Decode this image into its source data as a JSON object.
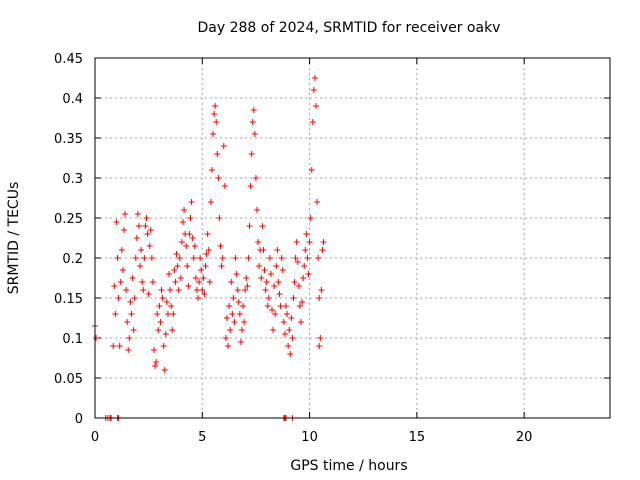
{
  "chart_data": {
    "type": "scatter",
    "title": "Day 288 of 2024, SRMTID for receiver oakv",
    "xlabel": "GPS time / hours",
    "ylabel": "SRMTID / TECUs",
    "xlim": [
      0,
      24
    ],
    "ylim": [
      0,
      0.45
    ],
    "xticks": [
      0,
      5,
      10,
      15,
      20
    ],
    "xtick_labels": [
      "0",
      "5",
      "10",
      "15",
      "20"
    ],
    "yticks": [
      0,
      0.05,
      0.1,
      0.15,
      0.2,
      0.25,
      0.3,
      0.35,
      0.4,
      0.45
    ],
    "ytick_labels": [
      "0",
      "0.05",
      "0.1",
      "0.15",
      "0.2",
      "0.25",
      "0.3",
      "0.35",
      "0.4",
      "0.45"
    ],
    "grid": true,
    "marker": "+",
    "color": "#ff0000",
    "series": [
      {
        "name": "SRMTID",
        "points": [
          [
            0.0,
            0.115
          ],
          [
            0.05,
            0.1
          ],
          [
            0.5,
            0.0
          ],
          [
            0.6,
            0.0
          ],
          [
            0.7,
            0.0
          ],
          [
            0.75,
            0.0
          ],
          [
            1.05,
            0.0
          ],
          [
            1.1,
            0.0
          ],
          [
            0.85,
            0.09
          ],
          [
            0.9,
            0.165
          ],
          [
            0.95,
            0.13
          ],
          [
            1.0,
            0.245
          ],
          [
            1.05,
            0.2
          ],
          [
            1.1,
            0.15
          ],
          [
            1.15,
            0.09
          ],
          [
            1.2,
            0.17
          ],
          [
            1.25,
            0.21
          ],
          [
            1.3,
            0.185
          ],
          [
            1.35,
            0.235
          ],
          [
            1.4,
            0.255
          ],
          [
            1.45,
            0.16
          ],
          [
            1.5,
            0.12
          ],
          [
            1.55,
            0.085
          ],
          [
            1.6,
            0.1
          ],
          [
            1.65,
            0.145
          ],
          [
            1.7,
            0.13
          ],
          [
            1.75,
            0.175
          ],
          [
            1.8,
            0.11
          ],
          [
            1.85,
            0.15
          ],
          [
            1.9,
            0.2
          ],
          [
            1.95,
            0.225
          ],
          [
            2.0,
            0.255
          ],
          [
            2.05,
            0.24
          ],
          [
            2.1,
            0.19
          ],
          [
            2.15,
            0.21
          ],
          [
            2.2,
            0.17
          ],
          [
            2.25,
            0.16
          ],
          [
            2.3,
            0.2
          ],
          [
            2.35,
            0.24
          ],
          [
            2.4,
            0.25
          ],
          [
            2.45,
            0.23
          ],
          [
            2.5,
            0.155
          ],
          [
            2.55,
            0.215
          ],
          [
            2.6,
            0.235
          ],
          [
            2.65,
            0.2
          ],
          [
            2.7,
            0.17
          ],
          [
            2.75,
            0.085
          ],
          [
            2.8,
            0.065
          ],
          [
            2.85,
            0.07
          ],
          [
            2.9,
            0.13
          ],
          [
            2.95,
            0.11
          ],
          [
            3.0,
            0.14
          ],
          [
            3.05,
            0.12
          ],
          [
            3.1,
            0.16
          ],
          [
            3.15,
            0.15
          ],
          [
            3.2,
            0.09
          ],
          [
            3.25,
            0.06
          ],
          [
            3.3,
            0.105
          ],
          [
            3.35,
            0.145
          ],
          [
            3.4,
            0.13
          ],
          [
            3.45,
            0.18
          ],
          [
            3.5,
            0.16
          ],
          [
            3.55,
            0.14
          ],
          [
            3.6,
            0.11
          ],
          [
            3.65,
            0.13
          ],
          [
            3.7,
            0.185
          ],
          [
            3.75,
            0.17
          ],
          [
            3.8,
            0.205
          ],
          [
            3.85,
            0.19
          ],
          [
            3.9,
            0.16
          ],
          [
            3.95,
            0.2
          ],
          [
            4.0,
            0.175
          ],
          [
            4.05,
            0.22
          ],
          [
            4.1,
            0.245
          ],
          [
            4.15,
            0.26
          ],
          [
            4.2,
            0.23
          ],
          [
            4.25,
            0.215
          ],
          [
            4.3,
            0.19
          ],
          [
            4.35,
            0.165
          ],
          [
            4.4,
            0.23
          ],
          [
            4.45,
            0.25
          ],
          [
            4.5,
            0.27
          ],
          [
            4.55,
            0.225
          ],
          [
            4.6,
            0.2
          ],
          [
            4.65,
            0.215
          ],
          [
            4.7,
            0.175
          ],
          [
            4.75,
            0.16
          ],
          [
            4.8,
            0.15
          ],
          [
            4.85,
            0.17
          ],
          [
            4.9,
            0.2
          ],
          [
            4.95,
            0.185
          ],
          [
            5.0,
            0.16
          ],
          [
            5.05,
            0.175
          ],
          [
            5.1,
            0.155
          ],
          [
            5.15,
            0.19
          ],
          [
            5.2,
            0.205
          ],
          [
            5.25,
            0.23
          ],
          [
            5.3,
            0.21
          ],
          [
            5.35,
            0.17
          ],
          [
            5.4,
            0.27
          ],
          [
            5.45,
            0.31
          ],
          [
            5.5,
            0.355
          ],
          [
            5.55,
            0.38
          ],
          [
            5.6,
            0.39
          ],
          [
            5.65,
            0.37
          ],
          [
            5.7,
            0.33
          ],
          [
            5.75,
            0.3
          ],
          [
            5.8,
            0.25
          ],
          [
            5.85,
            0.215
          ],
          [
            5.9,
            0.19
          ],
          [
            5.95,
            0.2
          ],
          [
            6.0,
            0.34
          ],
          [
            6.05,
            0.29
          ],
          [
            6.1,
            0.1
          ],
          [
            6.15,
            0.125
          ],
          [
            6.2,
            0.09
          ],
          [
            6.25,
            0.14
          ],
          [
            6.3,
            0.11
          ],
          [
            6.35,
            0.17
          ],
          [
            6.4,
            0.13
          ],
          [
            6.45,
            0.15
          ],
          [
            6.5,
            0.12
          ],
          [
            6.55,
            0.2
          ],
          [
            6.6,
            0.18
          ],
          [
            6.65,
            0.16
          ],
          [
            6.7,
            0.145
          ],
          [
            6.75,
            0.13
          ],
          [
            6.8,
            0.095
          ],
          [
            6.85,
            0.11
          ],
          [
            6.9,
            0.14
          ],
          [
            6.95,
            0.12
          ],
          [
            7.0,
            0.16
          ],
          [
            7.05,
            0.175
          ],
          [
            7.1,
            0.165
          ],
          [
            7.15,
            0.2
          ],
          [
            7.2,
            0.24
          ],
          [
            7.25,
            0.29
          ],
          [
            7.3,
            0.33
          ],
          [
            7.35,
            0.37
          ],
          [
            7.4,
            0.385
          ],
          [
            7.45,
            0.355
          ],
          [
            7.5,
            0.3
          ],
          [
            7.55,
            0.26
          ],
          [
            7.6,
            0.22
          ],
          [
            7.65,
            0.19
          ],
          [
            7.7,
            0.21
          ],
          [
            7.75,
            0.175
          ],
          [
            7.8,
            0.24
          ],
          [
            7.85,
            0.21
          ],
          [
            7.9,
            0.185
          ],
          [
            7.95,
            0.16
          ],
          [
            8.0,
            0.17
          ],
          [
            8.05,
            0.14
          ],
          [
            8.1,
            0.15
          ],
          [
            8.15,
            0.2
          ],
          [
            8.2,
            0.18
          ],
          [
            8.25,
            0.135
          ],
          [
            8.3,
            0.11
          ],
          [
            8.35,
            0.165
          ],
          [
            8.4,
            0.13
          ],
          [
            8.45,
            0.19
          ],
          [
            8.5,
            0.21
          ],
          [
            8.55,
            0.17
          ],
          [
            8.6,
            0.155
          ],
          [
            8.65,
            0.14
          ],
          [
            8.7,
            0.2
          ],
          [
            8.75,
            0.185
          ],
          [
            8.8,
            0.0
          ],
          [
            8.85,
            0.0
          ],
          [
            8.9,
            0.0
          ],
          [
            8.8,
            0.12
          ],
          [
            8.85,
            0.105
          ],
          [
            8.9,
            0.14
          ],
          [
            8.95,
            0.13
          ],
          [
            9.0,
            0.09
          ],
          [
            9.05,
            0.11
          ],
          [
            9.1,
            0.08
          ],
          [
            9.15,
            0.125
          ],
          [
            9.2,
            0.1
          ],
          [
            9.25,
            0.15
          ],
          [
            9.3,
            0.17
          ],
          [
            9.35,
            0.2
          ],
          [
            9.4,
            0.22
          ],
          [
            9.45,
            0.195
          ],
          [
            9.5,
            0.165
          ],
          [
            9.55,
            0.14
          ],
          [
            9.6,
            0.12
          ],
          [
            9.65,
            0.145
          ],
          [
            9.7,
            0.175
          ],
          [
            9.75,
            0.19
          ],
          [
            9.8,
            0.21
          ],
          [
            9.85,
            0.23
          ],
          [
            9.9,
            0.2
          ],
          [
            9.95,
            0.18
          ],
          [
            10.0,
            0.22
          ],
          [
            10.05,
            0.25
          ],
          [
            10.1,
            0.31
          ],
          [
            10.15,
            0.37
          ],
          [
            10.2,
            0.41
          ],
          [
            10.25,
            0.425
          ],
          [
            10.3,
            0.39
          ],
          [
            10.35,
            0.27
          ],
          [
            10.4,
            0.2
          ],
          [
            10.45,
            0.15
          ],
          [
            10.5,
            0.1
          ],
          [
            10.55,
            0.16
          ],
          [
            10.6,
            0.21
          ],
          [
            10.65,
            0.22
          ],
          [
            9.2,
            0.0
          ],
          [
            10.45,
            0.09
          ]
        ]
      }
    ]
  }
}
